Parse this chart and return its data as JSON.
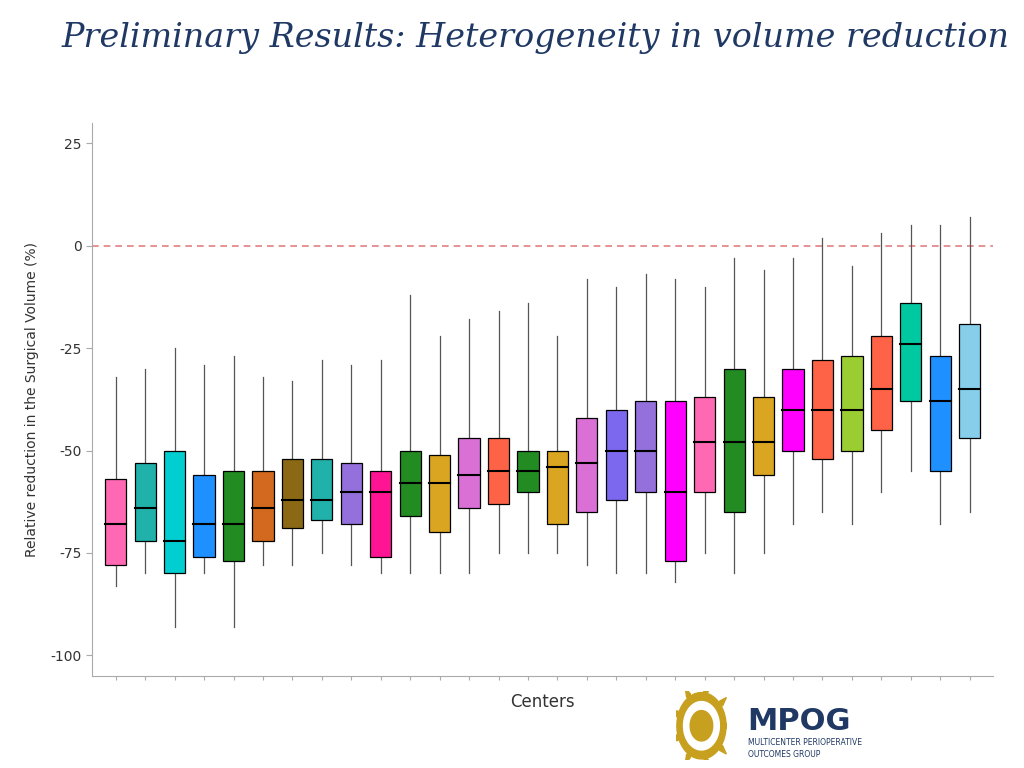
{
  "title": "Preliminary Results: Heterogeneity in volume reduction",
  "title_color": "#1f3864",
  "title_fontsize": 24,
  "xlabel": "Centers",
  "ylabel": "Relative reduction in the Surgical Volume (%)",
  "ylim": [
    -105,
    30
  ],
  "yticks": [
    25,
    0,
    -25,
    -50,
    -75,
    -100
  ],
  "background_color": "#ffffff",
  "ref_line_y": 0,
  "ref_line_color": "#e08080",
  "bottom_bar_color": "#1f3864",
  "boxes": [
    {
      "color": "#ff69b4",
      "whisker_lo": -83,
      "q1": -78,
      "median": -68,
      "q3": -57,
      "whisker_hi": -32
    },
    {
      "color": "#20b2aa",
      "whisker_lo": -80,
      "q1": -72,
      "median": -64,
      "q3": -53,
      "whisker_hi": -30
    },
    {
      "color": "#00ced1",
      "whisker_lo": -93,
      "q1": -80,
      "median": -72,
      "q3": -50,
      "whisker_hi": -25
    },
    {
      "color": "#1e90ff",
      "whisker_lo": -80,
      "q1": -76,
      "median": -68,
      "q3": -56,
      "whisker_hi": -29
    },
    {
      "color": "#228b22",
      "whisker_lo": -93,
      "q1": -77,
      "median": -68,
      "q3": -55,
      "whisker_hi": -27
    },
    {
      "color": "#d2691e",
      "whisker_lo": -78,
      "q1": -72,
      "median": -64,
      "q3": -55,
      "whisker_hi": -32
    },
    {
      "color": "#8b6914",
      "whisker_lo": -78,
      "q1": -69,
      "median": -62,
      "q3": -52,
      "whisker_hi": -33
    },
    {
      "color": "#20b2aa",
      "whisker_lo": -75,
      "q1": -67,
      "median": -62,
      "q3": -52,
      "whisker_hi": -28
    },
    {
      "color": "#9370db",
      "whisker_lo": -78,
      "q1": -68,
      "median": -60,
      "q3": -53,
      "whisker_hi": -29
    },
    {
      "color": "#ff1493",
      "whisker_lo": -80,
      "q1": -76,
      "median": -60,
      "q3": -55,
      "whisker_hi": -28
    },
    {
      "color": "#228b22",
      "whisker_lo": -80,
      "q1": -66,
      "median": -58,
      "q3": -50,
      "whisker_hi": -12
    },
    {
      "color": "#daa520",
      "whisker_lo": -80,
      "q1": -70,
      "median": -58,
      "q3": -51,
      "whisker_hi": -22
    },
    {
      "color": "#da70d6",
      "whisker_lo": -80,
      "q1": -64,
      "median": -56,
      "q3": -47,
      "whisker_hi": -18
    },
    {
      "color": "#ff6347",
      "whisker_lo": -75,
      "q1": -63,
      "median": -55,
      "q3": -47,
      "whisker_hi": -16
    },
    {
      "color": "#228b22",
      "whisker_lo": -75,
      "q1": -60,
      "median": -55,
      "q3": -50,
      "whisker_hi": -14
    },
    {
      "color": "#daa520",
      "whisker_lo": -75,
      "q1": -68,
      "median": -54,
      "q3": -50,
      "whisker_hi": -22
    },
    {
      "color": "#da70d6",
      "whisker_lo": -78,
      "q1": -65,
      "median": -53,
      "q3": -42,
      "whisker_hi": -8
    },
    {
      "color": "#7b68ee",
      "whisker_lo": -80,
      "q1": -62,
      "median": -50,
      "q3": -40,
      "whisker_hi": -10
    },
    {
      "color": "#9370db",
      "whisker_lo": -80,
      "q1": -60,
      "median": -50,
      "q3": -38,
      "whisker_hi": -7
    },
    {
      "color": "#ff00ff",
      "whisker_lo": -82,
      "q1": -77,
      "median": -60,
      "q3": -38,
      "whisker_hi": -8
    },
    {
      "color": "#ff69b4",
      "whisker_lo": -75,
      "q1": -60,
      "median": -48,
      "q3": -37,
      "whisker_hi": -10
    },
    {
      "color": "#228b22",
      "whisker_lo": -80,
      "q1": -65,
      "median": -48,
      "q3": -30,
      "whisker_hi": -3
    },
    {
      "color": "#daa520",
      "whisker_lo": -75,
      "q1": -56,
      "median": -48,
      "q3": -37,
      "whisker_hi": -6
    },
    {
      "color": "#ff00ff",
      "whisker_lo": -68,
      "q1": -50,
      "median": -40,
      "q3": -30,
      "whisker_hi": -3
    },
    {
      "color": "#ff6347",
      "whisker_lo": -65,
      "q1": -52,
      "median": -40,
      "q3": -28,
      "whisker_hi": 2
    },
    {
      "color": "#9acd32",
      "whisker_lo": -68,
      "q1": -50,
      "median": -40,
      "q3": -27,
      "whisker_hi": -5
    },
    {
      "color": "#ff6347",
      "whisker_lo": -60,
      "q1": -45,
      "median": -35,
      "q3": -22,
      "whisker_hi": 3
    },
    {
      "color": "#00c8a0",
      "whisker_lo": -55,
      "q1": -38,
      "median": -24,
      "q3": -14,
      "whisker_hi": 5
    },
    {
      "color": "#1e90ff",
      "whisker_lo": -68,
      "q1": -55,
      "median": -38,
      "q3": -27,
      "whisker_hi": 5
    },
    {
      "color": "#87ceeb",
      "whisker_lo": -65,
      "q1": -47,
      "median": -35,
      "q3": -19,
      "whisker_hi": 7
    }
  ]
}
